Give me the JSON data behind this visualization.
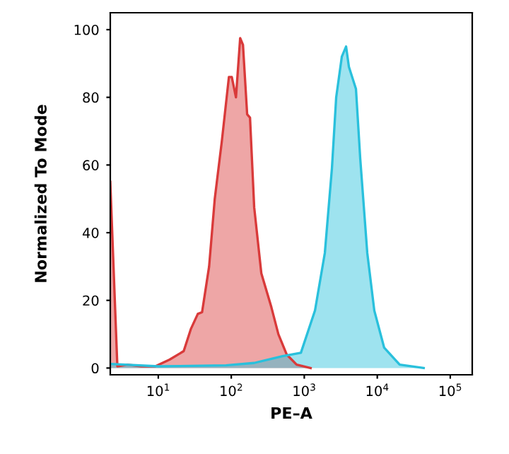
{
  "chart_data": {
    "type": "area",
    "xlabel": "PE–A",
    "ylabel": "Normalized To Mode",
    "log": "x",
    "xlim": [
      2.2,
      200000
    ],
    "ylim": [
      -2,
      105
    ],
    "xticks": [
      {
        "value": 10,
        "label": "10$^{1}$"
      },
      {
        "value": 100,
        "label": "10$^{2}$"
      },
      {
        "value": 1000,
        "label": "10$^{3}$"
      },
      {
        "value": 10000,
        "label": "10$^{4}$"
      },
      {
        "value": 100000,
        "label": "10$^{5}$"
      }
    ],
    "yticks": [
      0,
      20,
      40,
      60,
      80,
      100
    ],
    "grid": false,
    "legend": false,
    "series": [
      {
        "color": "#d93a3a",
        "x": [
          2.2,
          2.75,
          3.75,
          5.86,
          9.1,
          14.3,
          22.3,
          27.9,
          34.8,
          39.8,
          49.7,
          59.4,
          74.2,
          92.8,
          101.6,
          115.9,
          132.4,
          144.6,
          165,
          180.6,
          206,
          258,
          354,
          442,
          575,
          785,
          1222
        ],
        "values": [
          55,
          0.5,
          1,
          0.5,
          0.5,
          2.5,
          5,
          11.5,
          16,
          16.5,
          30,
          50,
          67,
          86,
          86,
          80,
          97.5,
          95.5,
          75,
          74,
          47.5,
          28,
          18,
          10,
          4,
          1,
          0
        ]
      },
      {
        "color": "#29c0dc",
        "x": [
          2.2,
          10,
          84.6,
          206,
          504,
          899,
          1403,
          1913,
          2392,
          2737,
          3268,
          3738,
          4087,
          5105,
          5838,
          7295,
          9105,
          12436,
          20280,
          43250
        ],
        "values": [
          1.2,
          0.5,
          0.8,
          1.5,
          3.5,
          4.5,
          17,
          34,
          59,
          80,
          92,
          95,
          89,
          82.5,
          62,
          34,
          17,
          6,
          1,
          0
        ]
      }
    ]
  }
}
